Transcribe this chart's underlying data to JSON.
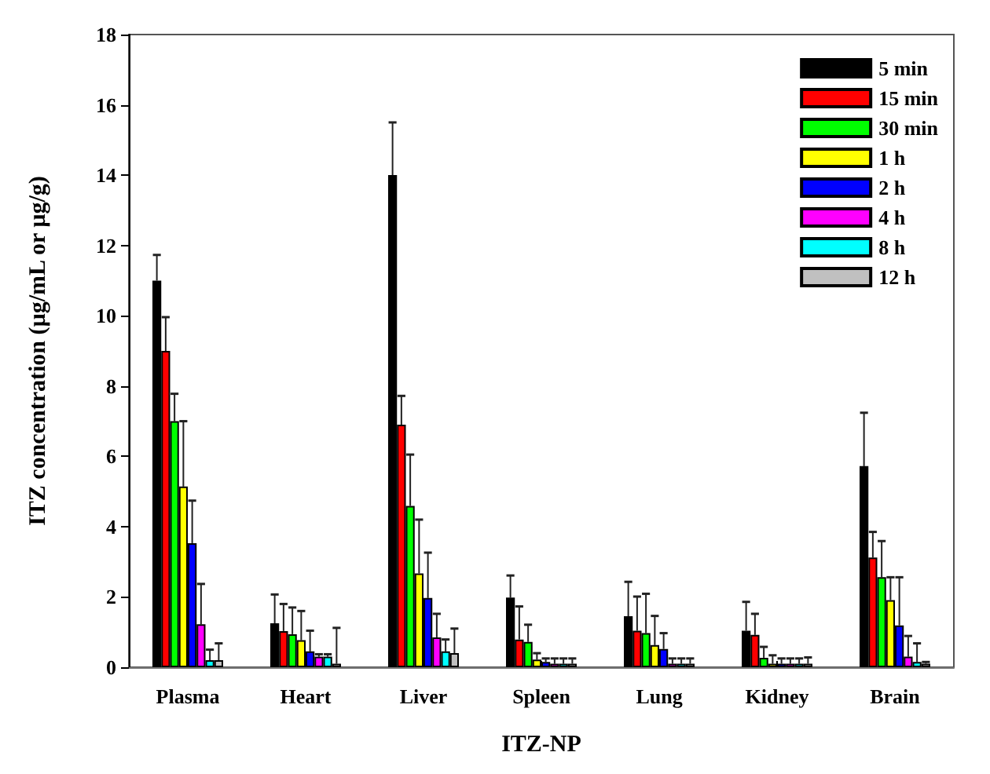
{
  "chart_data": {
    "type": "bar",
    "xlabel": "ITZ-NP",
    "ylabel": "ITZ concentration (µg/mL or µg/g)",
    "categories": [
      "Plasma",
      "Heart",
      "Liver",
      "Spleen",
      "Lung",
      "Kidney",
      "Brain"
    ],
    "ylim": [
      0,
      18
    ],
    "yticks": [
      0,
      2,
      4,
      6,
      8,
      10,
      12,
      14,
      16,
      18
    ],
    "grid": false,
    "legend": "top right",
    "series": [
      {
        "name": "5 min",
        "color": "#000000",
        "values": [
          11.0,
          1.25,
          14.0,
          1.98,
          1.45,
          1.04,
          5.72
        ],
        "errors": [
          [
            11.0,
            11.73
          ],
          [
            1.25,
            2.07
          ],
          [
            14.0,
            15.5
          ],
          [
            1.98,
            2.61
          ],
          [
            1.45,
            2.43
          ],
          [
            1.04,
            1.86
          ],
          [
            5.72,
            7.24
          ]
        ]
      },
      {
        "name": "15 min",
        "color": "#ff0000",
        "values": [
          9.0,
          1.03,
          6.9,
          0.79,
          1.04,
          0.92,
          3.12
        ],
        "errors": [
          [
            9.0,
            9.96
          ],
          [
            1.03,
            1.8
          ],
          [
            6.9,
            7.72
          ],
          [
            0.79,
            1.73
          ],
          [
            1.04,
            2.01
          ],
          [
            0.92,
            1.52
          ],
          [
            3.12,
            3.85
          ]
        ]
      },
      {
        "name": "30 min",
        "color": "#00ff00",
        "values": [
          7.0,
          0.94,
          4.59,
          0.72,
          0.97,
          0.27,
          2.56
        ],
        "errors": [
          [
            7.0,
            7.78
          ],
          [
            0.94,
            1.7
          ],
          [
            4.59,
            6.05
          ],
          [
            0.72,
            1.21
          ],
          [
            0.97,
            2.09
          ],
          [
            0.27,
            0.58
          ],
          [
            2.56,
            3.59
          ]
        ]
      },
      {
        "name": "1 h",
        "color": "#ffff00",
        "values": [
          5.14,
          0.77,
          2.67,
          0.22,
          0.63,
          0.1,
          1.91
        ],
        "errors": [
          [
            5.14,
            7.0
          ],
          [
            0.77,
            1.6
          ],
          [
            2.67,
            4.2
          ],
          [
            0.22,
            0.4
          ],
          [
            0.63,
            1.46
          ],
          [
            0.1,
            0.34
          ],
          [
            1.91,
            2.56
          ]
        ]
      },
      {
        "name": "2 h",
        "color": "#0000ff",
        "values": [
          3.53,
          0.45,
          1.97,
          0.15,
          0.52,
          0.1,
          1.19
        ],
        "errors": [
          [
            3.53,
            4.74
          ],
          [
            0.45,
            1.04
          ],
          [
            1.97,
            3.26
          ],
          [
            0.15,
            0.25
          ],
          [
            0.52,
            0.97
          ],
          [
            0.1,
            0.25
          ],
          [
            1.19,
            2.56
          ]
        ]
      },
      {
        "name": "4 h",
        "color": "#ff00ff",
        "values": [
          1.22,
          0.3,
          0.85,
          0.1,
          0.1,
          0.1,
          0.3
        ],
        "errors": [
          [
            1.22,
            2.37
          ],
          [
            0.3,
            0.37
          ],
          [
            0.85,
            1.52
          ],
          [
            0.1,
            0.25
          ],
          [
            0.1,
            0.25
          ],
          [
            0.1,
            0.25
          ],
          [
            0.3,
            0.89
          ]
        ]
      },
      {
        "name": "8 h",
        "color": "#00ffff",
        "values": [
          0.2,
          0.3,
          0.45,
          0.1,
          0.1,
          0.1,
          0.15
        ],
        "errors": [
          [
            0.2,
            0.5
          ],
          [
            0.3,
            0.37
          ],
          [
            0.45,
            0.79
          ],
          [
            0.1,
            0.25
          ],
          [
            0.1,
            0.25
          ],
          [
            0.1,
            0.25
          ],
          [
            0.15,
            0.68
          ]
        ]
      },
      {
        "name": "12 h",
        "color": "#c0c0c0",
        "values": [
          0.2,
          0.1,
          0.4,
          0.1,
          0.1,
          0.1,
          0.1
        ],
        "errors": [
          [
            0.2,
            0.68
          ],
          [
            0.1,
            1.12
          ],
          [
            0.4,
            1.1
          ],
          [
            0.1,
            0.25
          ],
          [
            0.1,
            0.25
          ],
          [
            0.1,
            0.28
          ],
          [
            0.1,
            0.15
          ]
        ]
      }
    ]
  }
}
